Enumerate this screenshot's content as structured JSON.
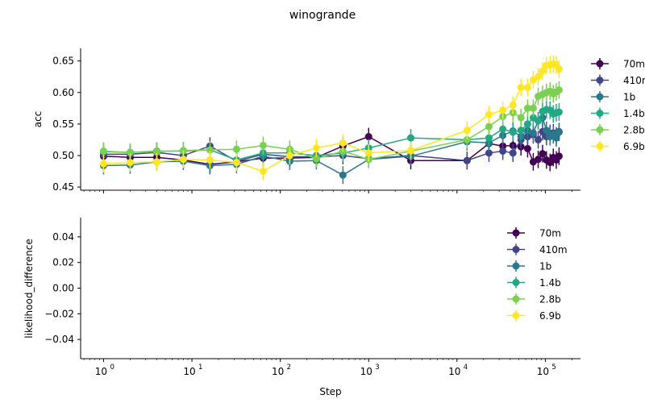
{
  "title": "winogrande",
  "chart_data": [
    {
      "type": "line",
      "ylabel": "acc",
      "xlabel": "",
      "xscale": "log",
      "xlim": [
        0.55,
        250000
      ],
      "ylim": [
        0.445,
        0.67
      ],
      "yticks": [
        "0.45",
        "0.50",
        "0.55",
        "0.60",
        "0.65"
      ],
      "ytick_values": [
        0.45,
        0.5,
        0.55,
        0.6,
        0.65
      ],
      "legend_placement": "right, outside",
      "series": [
        {
          "name": "70m",
          "color": "#440154",
          "x": [
            1,
            2,
            4,
            8,
            16,
            32,
            64,
            128,
            256,
            512,
            1000,
            3000,
            13000,
            23000,
            33000,
            43000,
            53000,
            63000,
            73000,
            83000,
            93000,
            103000,
            113000,
            123000,
            133000,
            143000
          ],
          "y": [
            0.499,
            0.497,
            0.497,
            0.493,
            0.486,
            0.49,
            0.496,
            0.496,
            0.497,
            0.515,
            0.53,
            0.492,
            0.492,
            0.519,
            0.515,
            0.516,
            0.514,
            0.511,
            0.49,
            0.494,
            0.503,
            0.493,
            0.489,
            0.497,
            0.493,
            0.499
          ],
          "err": 0.014
        },
        {
          "name": "410m",
          "color": "#414487",
          "x": [
            1,
            2,
            4,
            8,
            16,
            32,
            64,
            128,
            256,
            512,
            1000,
            3000,
            13000,
            23000,
            33000,
            43000,
            53000,
            63000,
            73000,
            83000,
            93000,
            103000,
            113000,
            123000,
            133000,
            143000
          ],
          "y": [
            0.502,
            0.502,
            0.505,
            0.5,
            0.515,
            0.491,
            0.502,
            0.498,
            0.498,
            0.5,
            0.495,
            0.5,
            0.492,
            0.504,
            0.507,
            0.504,
            0.525,
            0.53,
            0.533,
            0.525,
            0.538,
            0.53,
            0.535,
            0.536,
            0.531,
            0.538
          ],
          "err": 0.014
        },
        {
          "name": "1b",
          "color": "#2a788e",
          "x": [
            1,
            2,
            4,
            8,
            16,
            32,
            64,
            128,
            256,
            512,
            1000,
            3000,
            13000,
            23000,
            33000,
            43000,
            53000,
            63000,
            73000,
            83000,
            93000,
            103000,
            113000,
            123000,
            133000,
            143000
          ],
          "y": [
            0.484,
            0.485,
            0.49,
            0.491,
            0.484,
            0.486,
            0.499,
            0.491,
            0.492,
            0.469,
            0.494,
            0.499,
            0.522,
            0.52,
            0.532,
            0.539,
            0.53,
            0.54,
            0.536,
            0.555,
            0.56,
            0.54,
            0.53,
            0.533,
            0.528,
            0.537
          ],
          "err": 0.014
        },
        {
          "name": "1.4b",
          "color": "#22a884",
          "x": [
            1,
            2,
            4,
            8,
            16,
            32,
            64,
            128,
            256,
            512,
            1000,
            3000,
            13000,
            23000,
            33000,
            43000,
            53000,
            63000,
            73000,
            83000,
            93000,
            103000,
            113000,
            123000,
            133000,
            143000
          ],
          "y": [
            0.506,
            0.505,
            0.507,
            0.507,
            0.509,
            0.493,
            0.504,
            0.504,
            0.5,
            0.504,
            0.512,
            0.528,
            0.525,
            0.528,
            0.542,
            0.537,
            0.54,
            0.55,
            0.56,
            0.555,
            0.57,
            0.573,
            0.572,
            0.566,
            0.568,
            0.569
          ],
          "err": 0.014
        },
        {
          "name": "2.8b",
          "color": "#7ad151",
          "x": [
            1,
            2,
            4,
            8,
            16,
            32,
            64,
            128,
            256,
            512,
            1000,
            3000,
            13000,
            23000,
            33000,
            43000,
            53000,
            63000,
            73000,
            83000,
            93000,
            103000,
            113000,
            123000,
            133000,
            143000
          ],
          "y": [
            0.507,
            0.505,
            0.506,
            0.508,
            0.509,
            0.51,
            0.516,
            0.51,
            0.495,
            0.507,
            0.494,
            0.507,
            0.525,
            0.546,
            0.562,
            0.568,
            0.56,
            0.575,
            0.575,
            0.594,
            0.597,
            0.6,
            0.602,
            0.598,
            0.601,
            0.604
          ],
          "err": 0.014
        },
        {
          "name": "6.9b",
          "color": "#fde725",
          "x": [
            1,
            2,
            4,
            8,
            16,
            32,
            64,
            128,
            256,
            512,
            1000,
            3000,
            13000,
            23000,
            33000,
            43000,
            53000,
            63000,
            73000,
            83000,
            93000,
            103000,
            113000,
            123000,
            133000,
            143000
          ],
          "y": [
            0.487,
            0.489,
            0.49,
            0.494,
            0.493,
            0.489,
            0.475,
            0.5,
            0.512,
            0.52,
            0.504,
            0.508,
            0.54,
            0.565,
            0.572,
            0.58,
            0.608,
            0.608,
            0.62,
            0.625,
            0.634,
            0.643,
            0.644,
            0.645,
            0.644,
            0.637
          ],
          "err": 0.014
        }
      ]
    },
    {
      "type": "line",
      "ylabel": "likelihood_difference",
      "xlabel": "Step",
      "xscale": "log",
      "xlim": [
        0.55,
        250000
      ],
      "ylim": [
        -0.055,
        0.055
      ],
      "yticks": [
        "0.04",
        "0.02",
        "0.00",
        "−0.02",
        "−0.04"
      ],
      "ytick_values": [
        0.04,
        0.02,
        0.0,
        -0.02,
        -0.04
      ],
      "xticks_base": [
        "10",
        "10",
        "10",
        "10",
        "10",
        "10"
      ],
      "xticks_exp": [
        "0",
        "1",
        "2",
        "3",
        "4",
        "5"
      ],
      "legend_placement": "upper right, inside",
      "series": [
        {
          "name": "70m",
          "color": "#440154",
          "x": [],
          "y": []
        },
        {
          "name": "410m",
          "color": "#414487",
          "x": [],
          "y": []
        },
        {
          "name": "1b",
          "color": "#2a788e",
          "x": [],
          "y": []
        },
        {
          "name": "1.4b",
          "color": "#22a884",
          "x": [],
          "y": []
        },
        {
          "name": "2.8b",
          "color": "#7ad151",
          "x": [],
          "y": []
        },
        {
          "name": "6.9b",
          "color": "#fde725",
          "x": [],
          "y": []
        }
      ]
    }
  ]
}
